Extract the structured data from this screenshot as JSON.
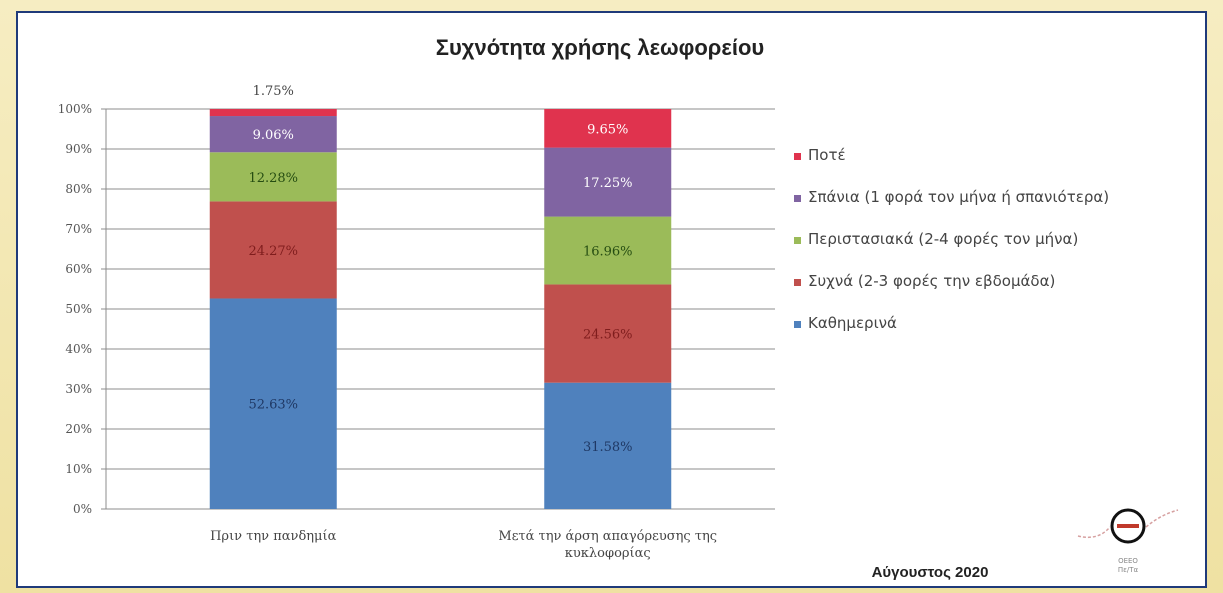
{
  "footer": {
    "date": "Αύγουστος 2020"
  },
  "logo": {
    "icon": "oeeo-logo-icon",
    "text_top": "OEEO",
    "text_bottom": "Πε/Τα"
  },
  "colors": {
    "daily": "#4f81bd",
    "often": "#c0504d",
    "occasionally": "#9bbb59",
    "rarely": "#8064a2",
    "never": "#e0334e"
  },
  "chart_data": {
    "type": "bar",
    "stacked": true,
    "title": "Συχνότητα χρήσης λεωφορείου",
    "categories": [
      [
        "Πριν την πανδημία"
      ],
      [
        "Μετά την άρση απαγόρευσης της",
        "κυκλοφορίας"
      ]
    ],
    "ylim": [
      0,
      100
    ],
    "yticks": [
      "0%",
      "10%",
      "20%",
      "30%",
      "40%",
      "50%",
      "60%",
      "70%",
      "80%",
      "90%",
      "100%"
    ],
    "grid": true,
    "legend_position": "right",
    "series": [
      {
        "name": "Καθημερινά",
        "color_key": "daily",
        "values": [
          52.63,
          31.58
        ],
        "labels": [
          "52.63%",
          "31.58%"
        ]
      },
      {
        "name": "Συχνά (2-3 φορές την εβδομάδα)",
        "color_key": "often",
        "values": [
          24.27,
          24.56
        ],
        "labels": [
          "24.27%",
          "24.56%"
        ]
      },
      {
        "name": "Περιστασιακά (2-4 φορές τον μήνα)",
        "color_key": "occasionally",
        "values": [
          12.28,
          16.96
        ],
        "labels": [
          "12.28%",
          "16.96%"
        ]
      },
      {
        "name": "Σπάνια (1 φορά τον μήνα ή σπανιότερα)",
        "color_key": "rarely",
        "values": [
          9.06,
          17.25
        ],
        "labels": [
          "9.06%",
          "17.25%"
        ]
      },
      {
        "name": "Ποτέ",
        "color_key": "never",
        "values": [
          1.75,
          9.65
        ],
        "labels": [
          "1.75%",
          "9.65%"
        ]
      }
    ]
  }
}
